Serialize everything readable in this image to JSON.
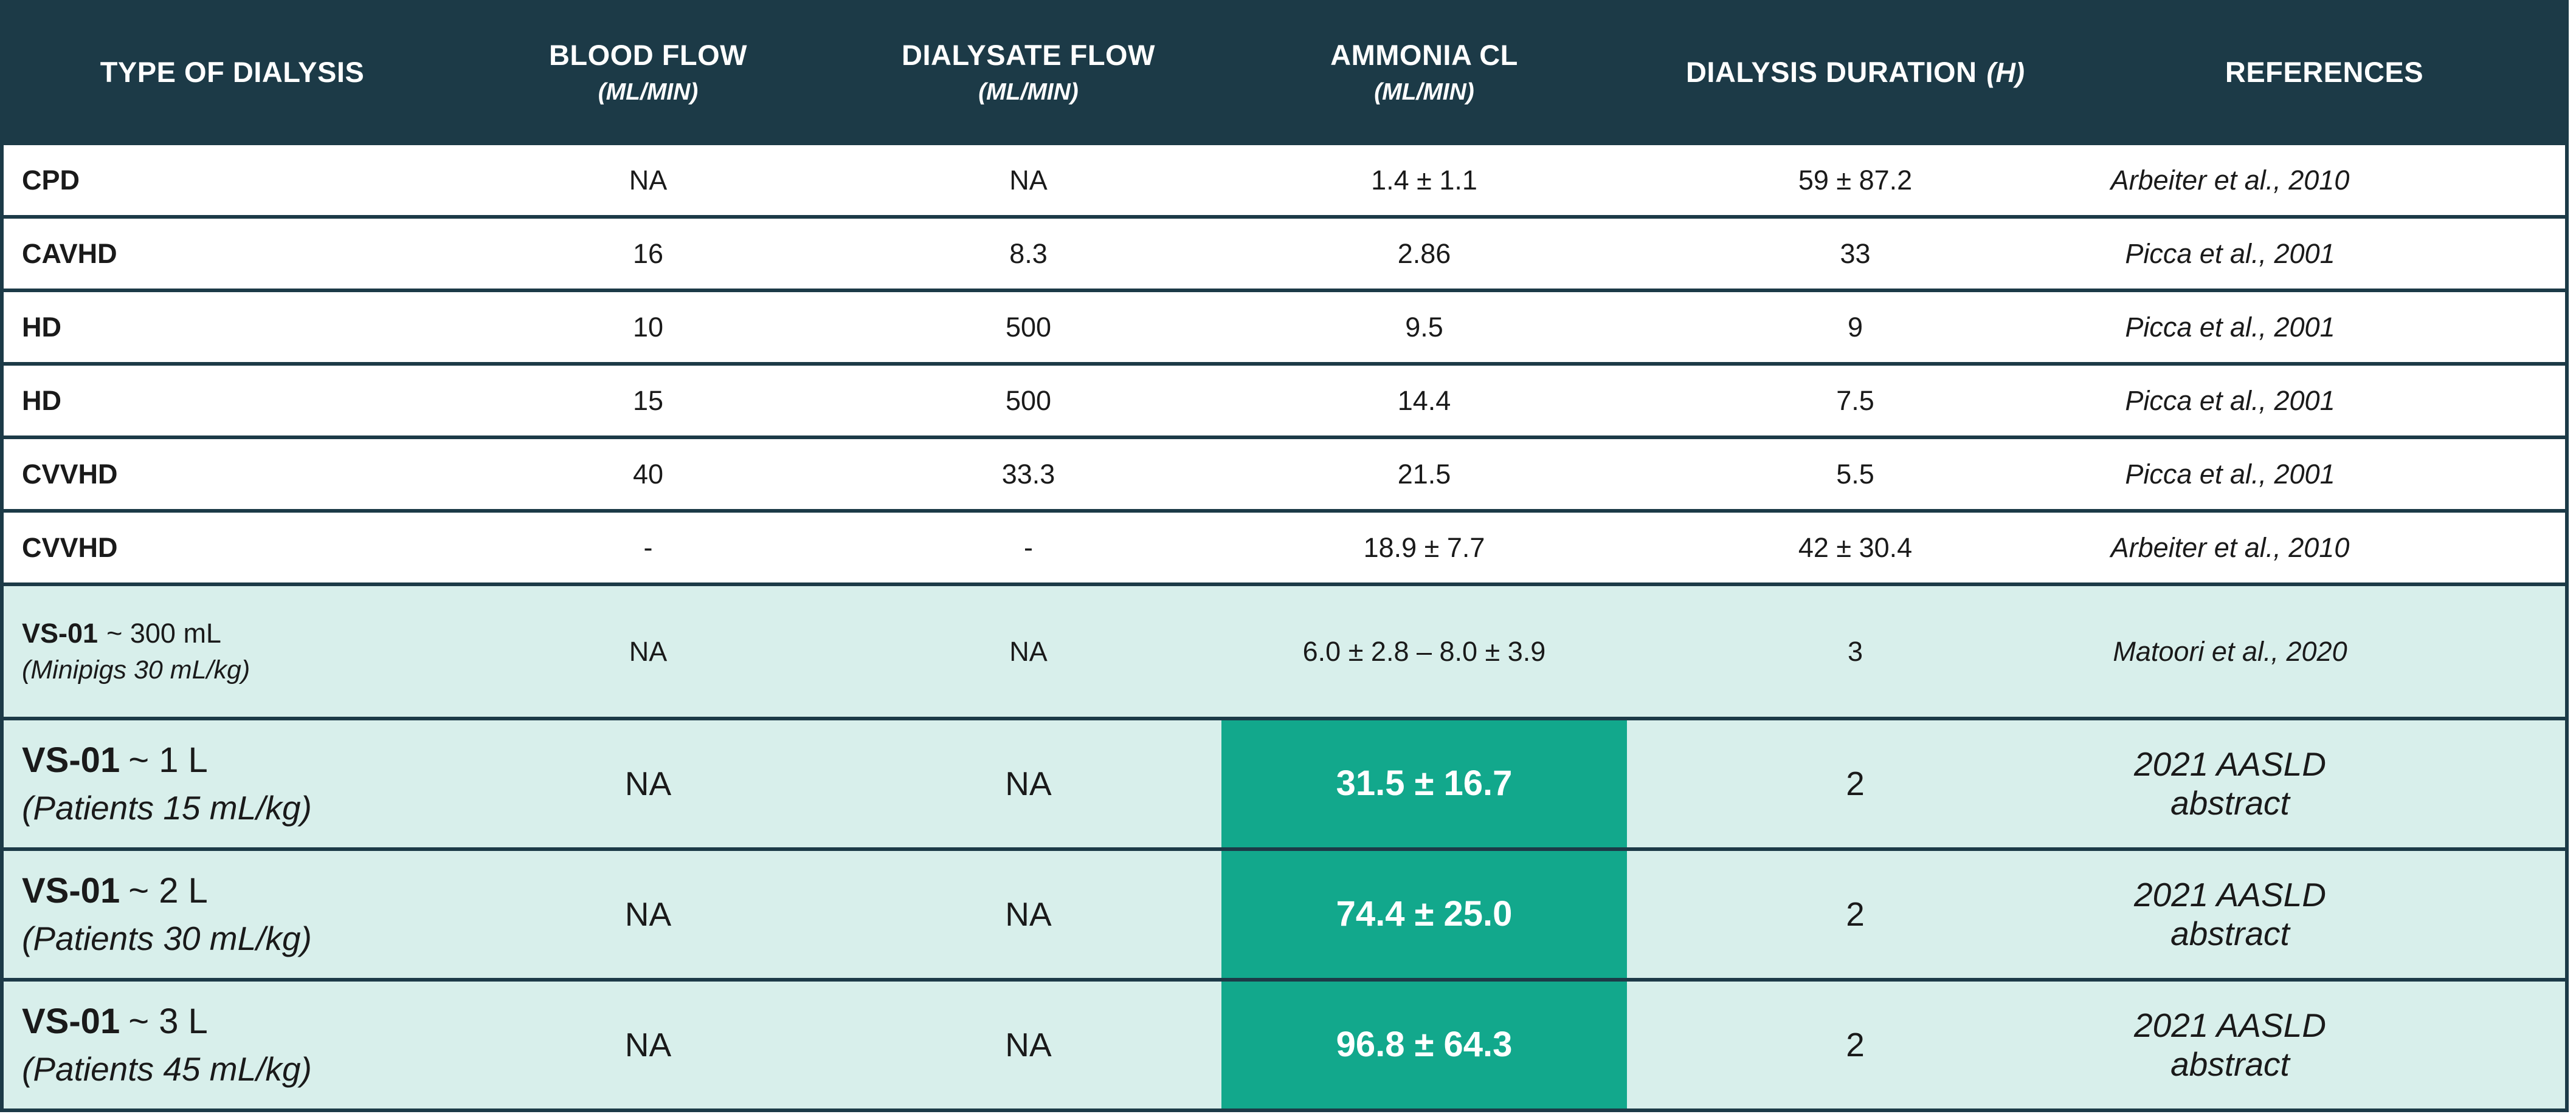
{
  "header": {
    "cells": [
      {
        "label": "TYPE OF DIALYSIS",
        "sub": "",
        "sub_inline": ""
      },
      {
        "label": "BLOOD FLOW",
        "sub": "(ML/MIN)",
        "sub_inline": ""
      },
      {
        "label": "DIALYSATE FLOW",
        "sub": "(ML/MIN)",
        "sub_inline": ""
      },
      {
        "label": "AMMONIA CL",
        "sub": "(ML/MIN)",
        "sub_inline": ""
      },
      {
        "label": "DIALYSIS DURATION",
        "sub": "",
        "sub_inline": "(H)"
      },
      {
        "label": "REFERENCES",
        "sub": "",
        "sub_inline": ""
      }
    ]
  },
  "rows": [
    {
      "name": "CPD",
      "name_suffix": "",
      "detail": "",
      "blood_flow": "NA",
      "dialysate_flow": "NA",
      "ammonia_cl": "1.4 ± 1.1",
      "duration": "59 ± 87.2",
      "reference": "Arbeiter et al., 2010"
    },
    {
      "name": "CAVHD",
      "name_suffix": "",
      "detail": "",
      "blood_flow": "16",
      "dialysate_flow": "8.3",
      "ammonia_cl": "2.86",
      "duration": "33",
      "reference": "Picca et al., 2001"
    },
    {
      "name": "HD",
      "name_suffix": "",
      "detail": "",
      "blood_flow": "10",
      "dialysate_flow": "500",
      "ammonia_cl": "9.5",
      "duration": "9",
      "reference": "Picca et al., 2001"
    },
    {
      "name": "HD",
      "name_suffix": "",
      "detail": "",
      "blood_flow": "15",
      "dialysate_flow": "500",
      "ammonia_cl": "14.4",
      "duration": "7.5",
      "reference": "Picca et al., 2001"
    },
    {
      "name": "CVVHD",
      "name_suffix": "",
      "detail": "",
      "blood_flow": "40",
      "dialysate_flow": "33.3",
      "ammonia_cl": "21.5",
      "duration": "5.5",
      "reference": "Picca et al., 2001"
    },
    {
      "name": "CVVHD",
      "name_suffix": "",
      "detail": "",
      "blood_flow": "-",
      "dialysate_flow": "-",
      "ammonia_cl": "18.9 ± 7.7",
      "duration": "42 ± 30.4",
      "reference": "Arbeiter et al., 2010"
    },
    {
      "name": "VS-01",
      "name_suffix": "~ 300 mL",
      "detail": "(Minipigs 30 mL/kg)",
      "blood_flow": "NA",
      "dialysate_flow": "NA",
      "ammonia_cl": "6.0 ± 2.8 – 8.0 ± 3.9",
      "duration": "3",
      "reference": "Matoori et al., 2020"
    },
    {
      "name": "VS-01",
      "name_suffix": "~ 1 L",
      "detail": "(Patients 15 mL/kg)",
      "blood_flow": "NA",
      "dialysate_flow": "NA",
      "ammonia_cl": "31.5 ± 16.7",
      "duration": "2",
      "reference": "2021 AASLD abstract"
    },
    {
      "name": "VS-01",
      "name_suffix": "~ 2 L",
      "detail": "(Patients 30 mL/kg)",
      "blood_flow": "NA",
      "dialysate_flow": "NA",
      "ammonia_cl": "74.4 ± 25.0",
      "duration": "2",
      "reference": "2021 AASLD abstract"
    },
    {
      "name": "VS-01",
      "name_suffix": "~ 3 L",
      "detail": "(Patients 45 mL/kg)",
      "blood_flow": "NA",
      "dialysate_flow": "NA",
      "ammonia_cl": "96.8 ± 64.3",
      "duration": "2",
      "reference": "2021 AASLD abstract"
    }
  ],
  "colors": {
    "header_bg": "#1c3a47",
    "header_text": "#ffffff",
    "row_bg_white": "#ffffff",
    "row_bg_tint": "#d8efeb",
    "highlight_bg": "#12a88c",
    "highlight_text": "#ffffff",
    "border": "#1c3a47",
    "body_text": "#1a1a1a"
  }
}
